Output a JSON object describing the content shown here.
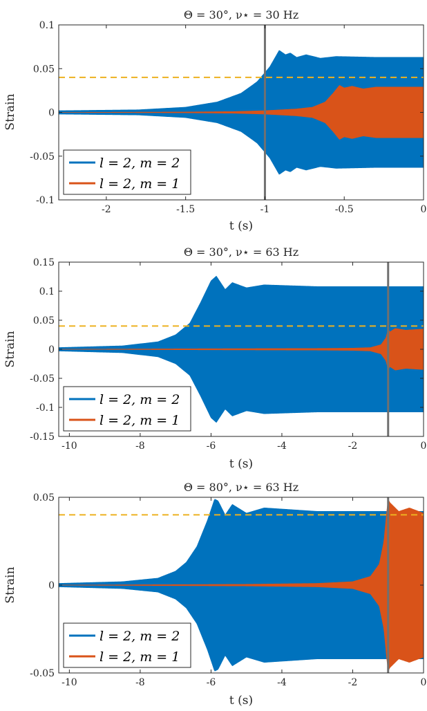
{
  "colors": {
    "m2": "#0072BD",
    "m1": "#D95319",
    "threshold": "#EDB120",
    "marker": "#707070"
  },
  "chart_data": [
    {
      "type": "line",
      "title": "Θ = 30°,   ν⋆ = 30 Hz",
      "xlabel": "t (s)",
      "ylabel": "Strain",
      "xlim": [
        -2.3,
        0
      ],
      "ylim": [
        -0.1,
        0.1
      ],
      "xticks": [
        -2,
        -1.5,
        -1,
        -0.5,
        0
      ],
      "xtick_labels": [
        "-2",
        "-1.5",
        "-1",
        "-0.5",
        "0"
      ],
      "yticks": [
        -0.1,
        -0.05,
        0,
        0.05,
        0.1
      ],
      "ytick_labels": [
        "-0.1",
        "-0.05",
        "0",
        "0.05",
        "0.1"
      ],
      "threshold": 0.04,
      "marker_x": -1,
      "legend": [
        "l = 2, m = 2",
        "l = 2, m = 1"
      ],
      "legend_position": "bottom-left",
      "series": [
        {
          "name": "l = 2, m = 2",
          "color_key": "m2",
          "envelope": [
            [
              -2.3,
              0.002
            ],
            [
              -1.8,
              0.003
            ],
            [
              -1.5,
              0.006
            ],
            [
              -1.3,
              0.012
            ],
            [
              -1.15,
              0.022
            ],
            [
              -1.05,
              0.035
            ],
            [
              -0.97,
              0.052
            ],
            [
              -0.91,
              0.071
            ],
            [
              -0.87,
              0.066
            ],
            [
              -0.84,
              0.068
            ],
            [
              -0.8,
              0.063
            ],
            [
              -0.74,
              0.066
            ],
            [
              -0.65,
              0.062
            ],
            [
              -0.55,
              0.064
            ],
            [
              -0.3,
              0.063
            ],
            [
              0,
              0.063
            ]
          ]
        },
        {
          "name": "l = 2, m = 1",
          "color_key": "m1",
          "envelope": [
            [
              -2.3,
              0
            ],
            [
              -1.5,
              0.0005
            ],
            [
              -1.2,
              0.001
            ],
            [
              -1.0,
              0.002
            ],
            [
              -0.8,
              0.004
            ],
            [
              -0.7,
              0.006
            ],
            [
              -0.62,
              0.012
            ],
            [
              -0.57,
              0.022
            ],
            [
              -0.53,
              0.031
            ],
            [
              -0.5,
              0.028
            ],
            [
              -0.45,
              0.03
            ],
            [
              -0.38,
              0.027
            ],
            [
              -0.3,
              0.029
            ],
            [
              0,
              0.029
            ]
          ]
        }
      ]
    },
    {
      "type": "line",
      "title": "Θ = 30°,   ν⋆ = 63 Hz",
      "xlabel": "t (s)",
      "ylabel": "Strain",
      "xlim": [
        -10.3,
        0
      ],
      "ylim": [
        -0.15,
        0.15
      ],
      "xticks": [
        -10,
        -8,
        -6,
        -4,
        -2,
        0
      ],
      "xtick_labels": [
        "-10",
        "-8",
        "-6",
        "-4",
        "-2",
        "0"
      ],
      "yticks": [
        -0.15,
        -0.1,
        -0.05,
        0,
        0.05,
        0.1,
        0.15
      ],
      "ytick_labels": [
        "-0.15",
        "-0.1",
        "-0.05",
        "0",
        "0.05",
        "0.1",
        "0.15"
      ],
      "threshold": 0.04,
      "marker_x": -1,
      "legend": [
        "l = 2, m = 2",
        "l = 2, m = 1"
      ],
      "legend_position": "bottom-left",
      "series": [
        {
          "name": "l = 2, m = 2",
          "color_key": "m2",
          "envelope": [
            [
              -10.3,
              0.003
            ],
            [
              -8.5,
              0.006
            ],
            [
              -7.5,
              0.013
            ],
            [
              -7.0,
              0.025
            ],
            [
              -6.6,
              0.045
            ],
            [
              -6.3,
              0.08
            ],
            [
              -6.0,
              0.118
            ],
            [
              -5.85,
              0.126
            ],
            [
              -5.6,
              0.103
            ],
            [
              -5.4,
              0.115
            ],
            [
              -5.0,
              0.106
            ],
            [
              -4.5,
              0.111
            ],
            [
              -3.0,
              0.108
            ],
            [
              0,
              0.108
            ]
          ]
        },
        {
          "name": "l = 2, m = 1",
          "color_key": "m1",
          "envelope": [
            [
              -10.3,
              0
            ],
            [
              -6,
              0.001
            ],
            [
              -3,
              0.0015
            ],
            [
              -2,
              0.002
            ],
            [
              -1.5,
              0.003
            ],
            [
              -1.2,
              0.008
            ],
            [
              -1.06,
              0.02
            ],
            [
              -1.0,
              0.035
            ],
            [
              -0.95,
              0.03
            ],
            [
              -0.8,
              0.036
            ],
            [
              -0.5,
              0.033
            ],
            [
              0,
              0.035
            ]
          ]
        }
      ]
    },
    {
      "type": "line",
      "title": "Θ = 80°,   ν⋆ = 63 Hz",
      "xlabel": "t (s)",
      "ylabel": "Strain",
      "xlim": [
        -10.3,
        0
      ],
      "ylim": [
        -0.05,
        0.05
      ],
      "xticks": [
        -10,
        -8,
        -6,
        -4,
        -2,
        0
      ],
      "xtick_labels": [
        "-10",
        "-8",
        "-6",
        "-4",
        "-2",
        "0"
      ],
      "yticks": [
        -0.05,
        0,
        0.05
      ],
      "ytick_labels": [
        "-0.05",
        "0",
        "0.05"
      ],
      "threshold": 0.04,
      "marker_x": -1,
      "legend": [
        "l = 2, m = 2",
        "l = 2, m = 1"
      ],
      "legend_position": "bottom-left",
      "series": [
        {
          "name": "l = 2, m = 2",
          "color_key": "m2",
          "envelope": [
            [
              -10.3,
              0.001
            ],
            [
              -8.5,
              0.002
            ],
            [
              -7.5,
              0.004
            ],
            [
              -7.0,
              0.008
            ],
            [
              -6.7,
              0.013
            ],
            [
              -6.4,
              0.022
            ],
            [
              -6.1,
              0.037
            ],
            [
              -5.9,
              0.049
            ],
            [
              -5.8,
              0.048
            ],
            [
              -5.6,
              0.04
            ],
            [
              -5.4,
              0.046
            ],
            [
              -5.0,
              0.041
            ],
            [
              -4.5,
              0.044
            ],
            [
              -3.0,
              0.042
            ],
            [
              -1.05,
              0.042
            ],
            [
              -1.0,
              0.03
            ],
            [
              -0.8,
              0.04
            ],
            [
              -0.5,
              0.042
            ],
            [
              0,
              0.042
            ]
          ]
        },
        {
          "name": "l = 2, m = 1",
          "color_key": "m1",
          "envelope": [
            [
              -10.3,
              0
            ],
            [
              -5,
              0.0005
            ],
            [
              -3,
              0.001
            ],
            [
              -2,
              0.002
            ],
            [
              -1.5,
              0.005
            ],
            [
              -1.25,
              0.012
            ],
            [
              -1.12,
              0.025
            ],
            [
              -1.05,
              0.04
            ],
            [
              -1.0,
              0.049
            ],
            [
              -0.95,
              0.047
            ],
            [
              -0.7,
              0.042
            ],
            [
              -0.4,
              0.044
            ],
            [
              0,
              0.041
            ]
          ]
        }
      ]
    }
  ]
}
